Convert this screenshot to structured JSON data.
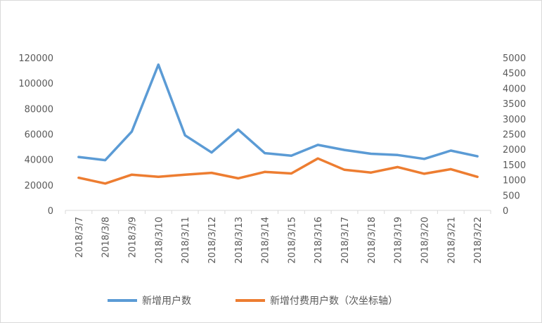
{
  "chart_data": {
    "type": "line",
    "title": "",
    "xlabel": "",
    "ylabel": "",
    "categories": [
      "2018/3/7",
      "2018/3/8",
      "2018/3/9",
      "2018/3/10",
      "2018/3/11",
      "2018/3/12",
      "2018/3/13",
      "2018/3/14",
      "2018/3/15",
      "2018/3/16",
      "2018/3/17",
      "2018/3/18",
      "2018/3/19",
      "2018/3/20",
      "2018/3/21",
      "2018/3/22"
    ],
    "y_left": {
      "ylim": [
        0,
        120000
      ],
      "ticks": [
        "0",
        "20000",
        "40000",
        "60000",
        "80000",
        "100000",
        "120000"
      ]
    },
    "y_right": {
      "ylim": [
        0,
        5000
      ],
      "ticks": [
        "0",
        "500",
        "1000",
        "1500",
        "2000",
        "2500",
        "3000",
        "3500",
        "4000",
        "4500",
        "5000"
      ]
    },
    "grid": false,
    "legend_position": "bottom",
    "series": [
      {
        "name": "新增用户数",
        "axis": "left",
        "color": "#5b9bd5",
        "values": [
          42000,
          39500,
          62000,
          114500,
          59000,
          45500,
          63500,
          45000,
          43000,
          51500,
          47500,
          44500,
          43500,
          40500,
          47000,
          42500
        ]
      },
      {
        "name": "新增付费用户数（次坐标轴）",
        "axis": "right",
        "color": "#ed7d31",
        "values": [
          1070,
          880,
          1170,
          1100,
          1170,
          1230,
          1050,
          1260,
          1210,
          1700,
          1330,
          1240,
          1420,
          1200,
          1350,
          1100
        ]
      }
    ]
  }
}
